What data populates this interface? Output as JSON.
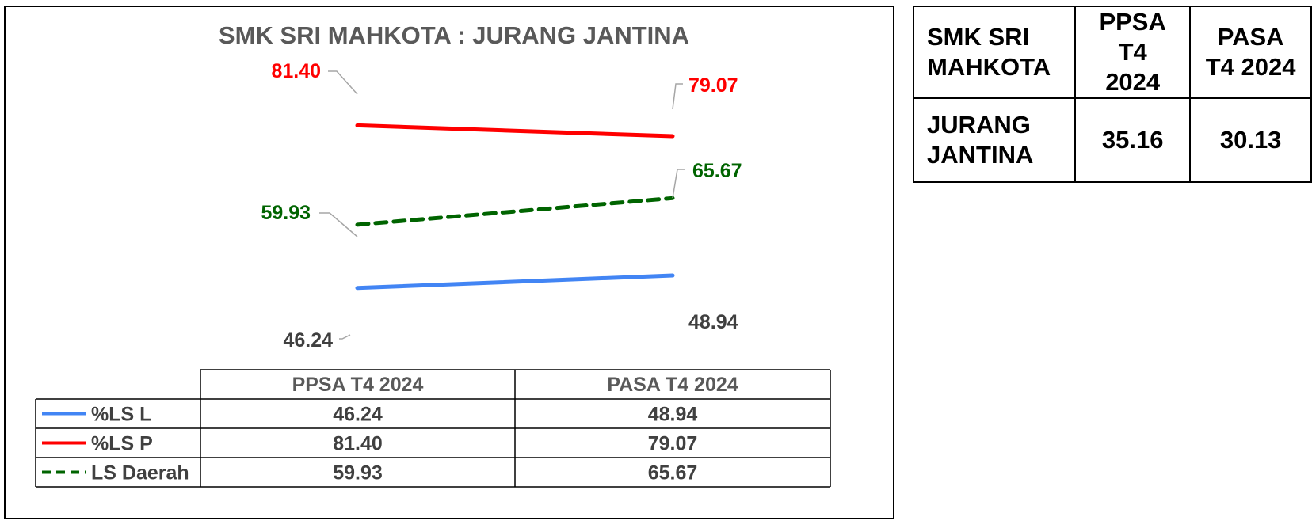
{
  "chart_data": {
    "type": "line",
    "title": "SMK SRI MAHKOTA : JURANG JANTINA",
    "categories": [
      "PPSA T4 2024",
      "PASA T4 2024"
    ],
    "series": [
      {
        "name": "%LS L",
        "values": [
          46.24,
          48.94
        ],
        "labels": [
          "46.24",
          "48.94"
        ],
        "color": "#4285f4",
        "label_color": "#404040",
        "dashed": false
      },
      {
        "name": "%LS P",
        "values": [
          81.4,
          79.07
        ],
        "labels": [
          "81.40",
          "79.07"
        ],
        "color": "#ff0000",
        "label_color": "#ff0000",
        "dashed": false
      },
      {
        "name": "LS Daerah",
        "values": [
          59.93,
          65.67
        ],
        "labels": [
          "59.93",
          "65.67"
        ],
        "color": "#006400",
        "label_color": "#006400",
        "dashed": true
      }
    ],
    "legend": "data-table-bottom",
    "grid": false
  },
  "side_table": {
    "header": [
      "SMK SRI\nMAHKOTA",
      "PPSA\nT4 2024",
      "PASA\nT4 2024"
    ],
    "row": [
      "JURANG\nJANTINA",
      "35.16",
      "30.13"
    ]
  }
}
